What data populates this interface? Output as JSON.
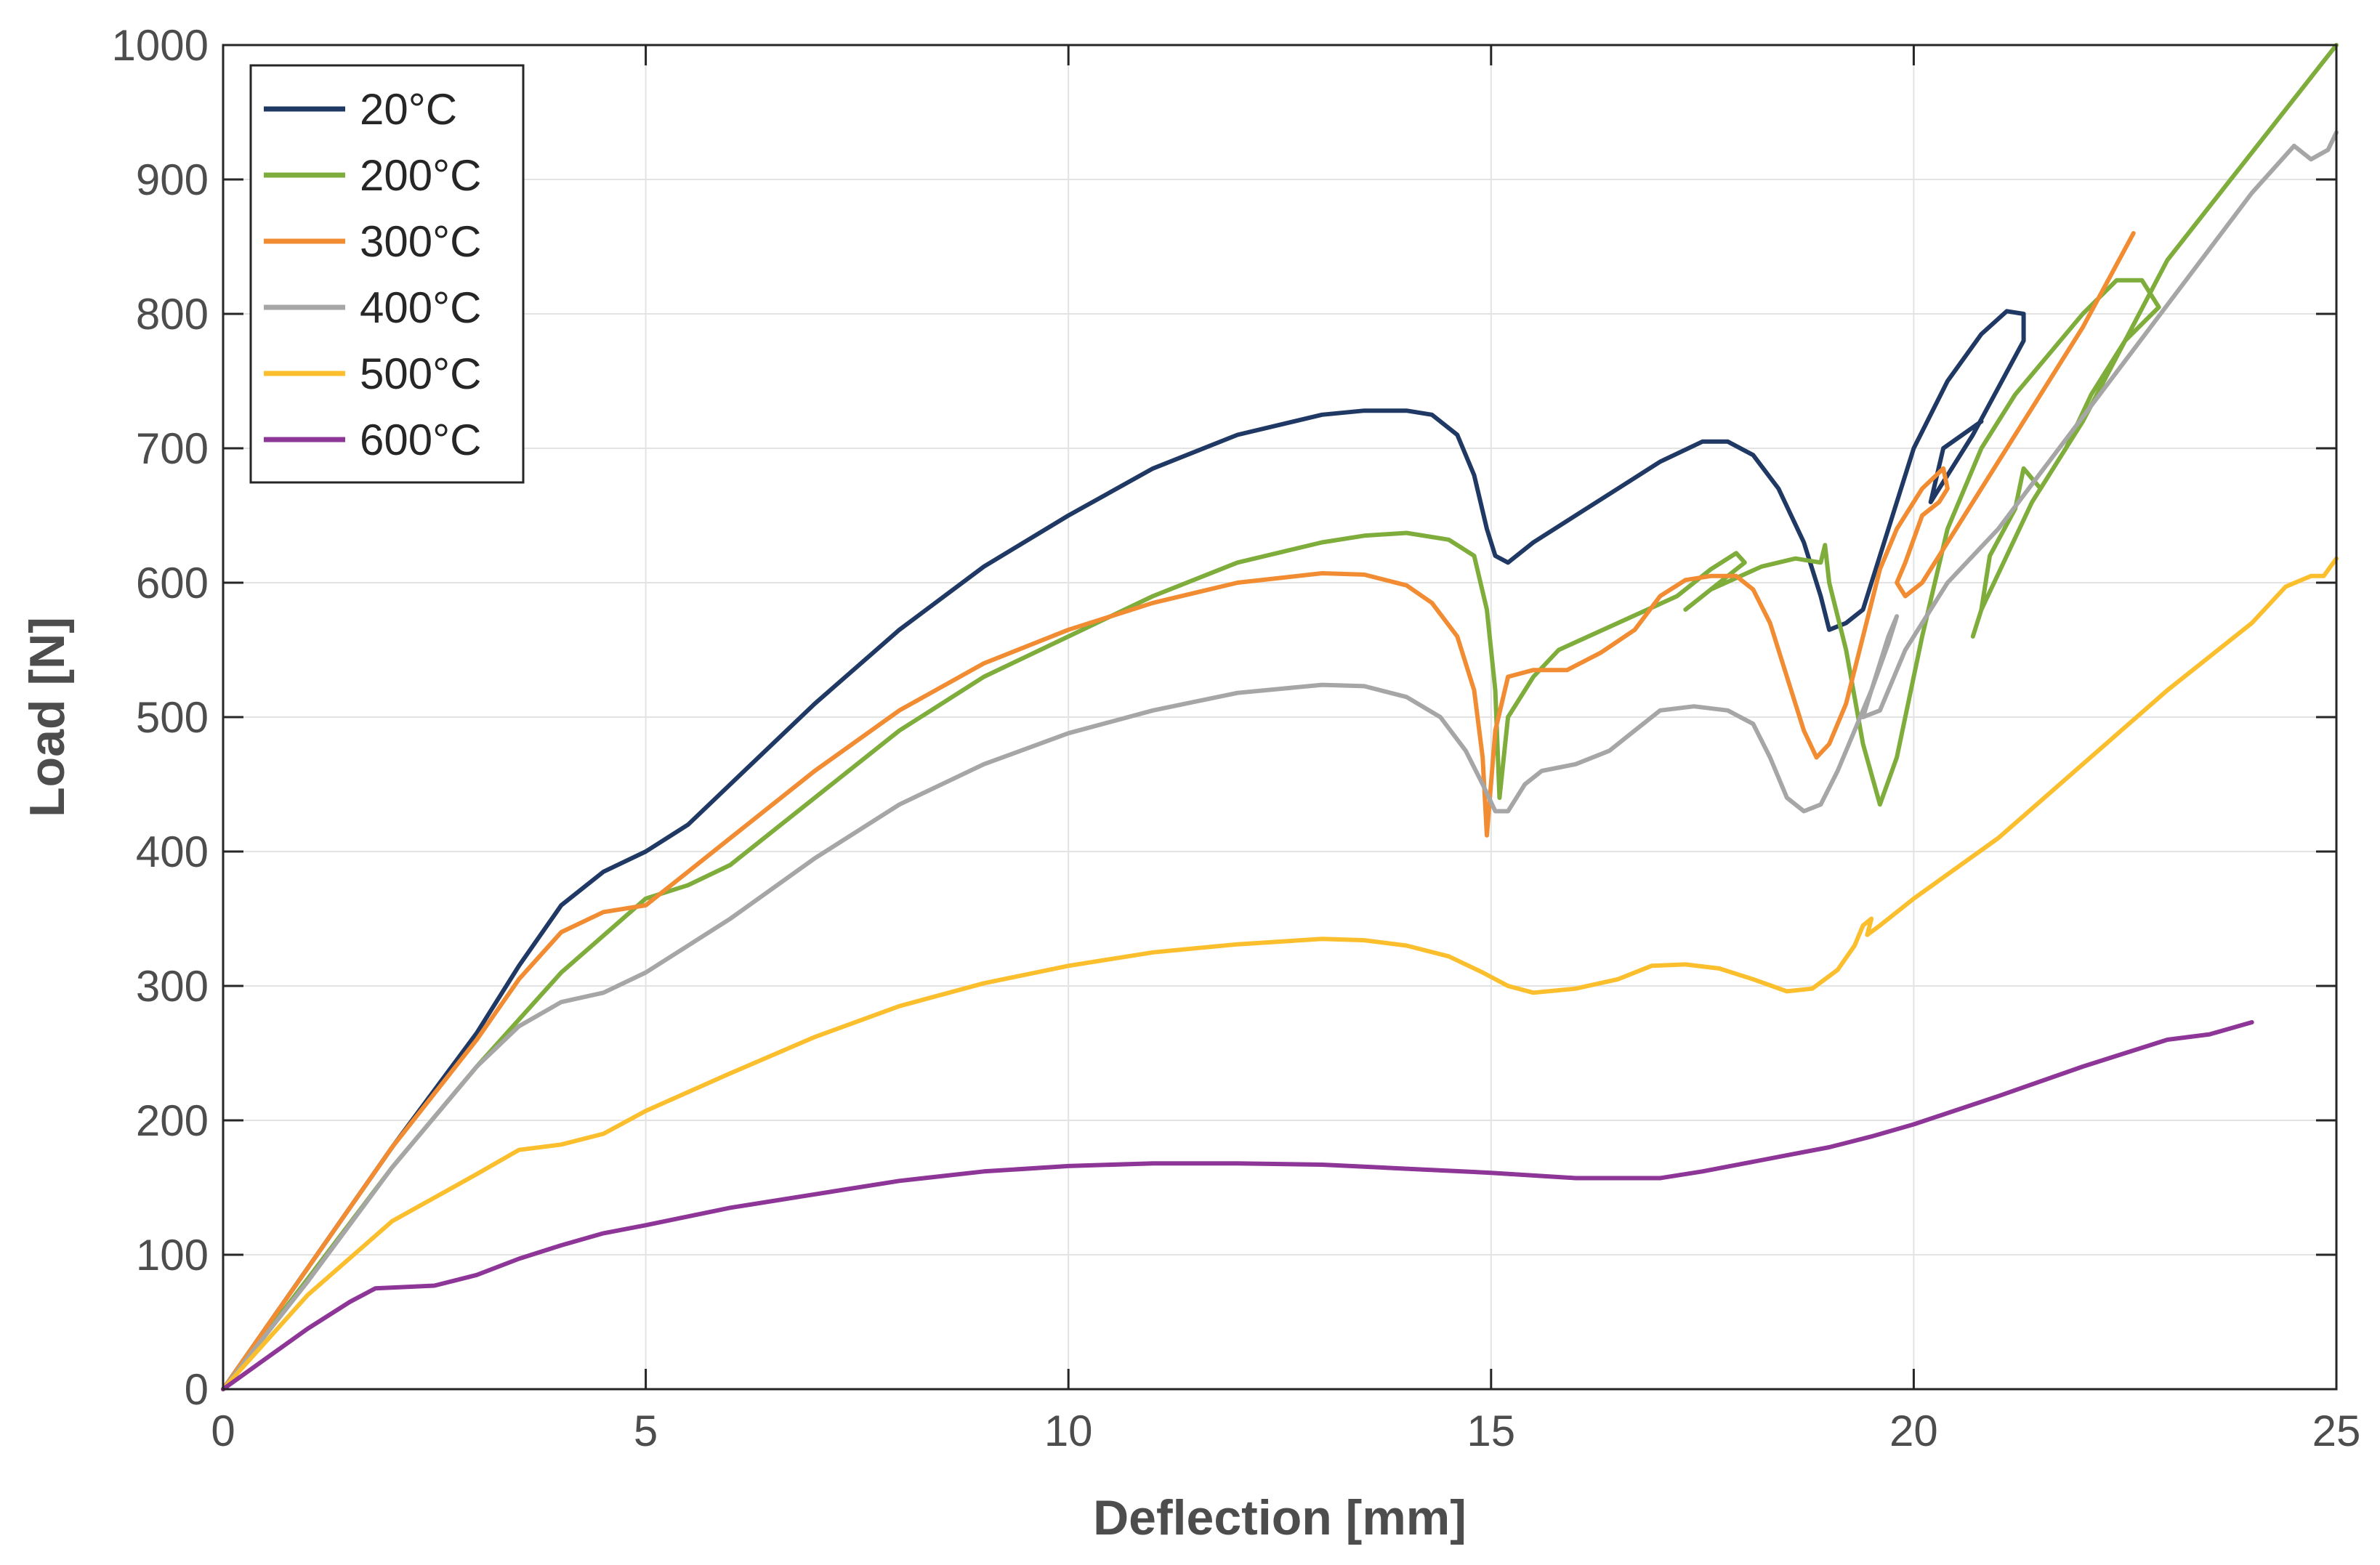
{
  "chart_data": {
    "type": "line",
    "title": "",
    "xlabel": "Deflection [mm]",
    "ylabel": "Load [N]",
    "xlim": [
      0,
      25
    ],
    "ylim": [
      0,
      1000
    ],
    "xticks": [
      0,
      5,
      10,
      15,
      20,
      25
    ],
    "yticks": [
      0,
      100,
      200,
      300,
      400,
      500,
      600,
      700,
      800,
      900,
      1000
    ],
    "grid": true,
    "legend_position": "top-left",
    "series": [
      {
        "name": "20°C",
        "color": "#1f3864",
        "points": [
          [
            0,
            0
          ],
          [
            1,
            90
          ],
          [
            2,
            180
          ],
          [
            3,
            265
          ],
          [
            3.5,
            315
          ],
          [
            4,
            360
          ],
          [
            4.5,
            385
          ],
          [
            5,
            400
          ],
          [
            5.5,
            420
          ],
          [
            6,
            450
          ],
          [
            7,
            510
          ],
          [
            8,
            565
          ],
          [
            9,
            612
          ],
          [
            10,
            650
          ],
          [
            11,
            685
          ],
          [
            12,
            710
          ],
          [
            13,
            725
          ],
          [
            13.5,
            728
          ],
          [
            14,
            728
          ],
          [
            14.3,
            725
          ],
          [
            14.6,
            710
          ],
          [
            14.8,
            680
          ],
          [
            14.95,
            640
          ],
          [
            15.05,
            620
          ],
          [
            15.2,
            615
          ],
          [
            15.5,
            630
          ],
          [
            16,
            650
          ],
          [
            16.5,
            670
          ],
          [
            17,
            690
          ],
          [
            17.5,
            705
          ],
          [
            17.8,
            705
          ],
          [
            18.1,
            695
          ],
          [
            18.4,
            670
          ],
          [
            18.7,
            630
          ],
          [
            18.9,
            590
          ],
          [
            19,
            565
          ],
          [
            19.2,
            570
          ],
          [
            19.4,
            580
          ],
          [
            19.7,
            640
          ],
          [
            20,
            700
          ],
          [
            20.4,
            750
          ],
          [
            20.8,
            785
          ],
          [
            21.1,
            802
          ],
          [
            21.3,
            800
          ],
          [
            21.3,
            780
          ],
          [
            20.7,
            710
          ],
          [
            20.2,
            660
          ],
          [
            20.35,
            700
          ],
          [
            20.8,
            720
          ]
        ]
      },
      {
        "name": "200°C",
        "color": "#7ead3b",
        "points": [
          [
            0,
            0
          ],
          [
            1,
            82
          ],
          [
            2,
            165
          ],
          [
            3,
            240
          ],
          [
            4,
            310
          ],
          [
            5,
            365
          ],
          [
            5.5,
            375
          ],
          [
            6,
            390
          ],
          [
            7,
            440
          ],
          [
            8,
            490
          ],
          [
            9,
            530
          ],
          [
            10,
            560
          ],
          [
            11,
            590
          ],
          [
            12,
            615
          ],
          [
            13,
            630
          ],
          [
            13.5,
            635
          ],
          [
            14,
            637
          ],
          [
            14.5,
            632
          ],
          [
            14.8,
            620
          ],
          [
            14.95,
            580
          ],
          [
            15.05,
            520
          ],
          [
            15.1,
            440
          ],
          [
            15.2,
            500
          ],
          [
            15.5,
            530
          ],
          [
            15.8,
            550
          ],
          [
            16.5,
            570
          ],
          [
            17.2,
            590
          ],
          [
            17.6,
            610
          ],
          [
            17.9,
            622
          ],
          [
            18,
            615
          ],
          [
            17.5,
            590
          ],
          [
            17.3,
            580
          ],
          [
            17.6,
            595
          ],
          [
            18.2,
            612
          ],
          [
            18.6,
            618
          ],
          [
            18.9,
            615
          ],
          [
            18.95,
            628
          ],
          [
            19,
            600
          ],
          [
            19.2,
            550
          ],
          [
            19.4,
            480
          ],
          [
            19.6,
            435
          ],
          [
            19.8,
            470
          ],
          [
            20.1,
            560
          ],
          [
            20.4,
            640
          ],
          [
            20.8,
            700
          ],
          [
            21.2,
            740
          ],
          [
            21.6,
            770
          ],
          [
            22,
            800
          ],
          [
            22.4,
            825
          ],
          [
            22.7,
            825
          ],
          [
            22.9,
            805
          ],
          [
            22.5,
            780
          ],
          [
            22.1,
            740
          ],
          [
            21.8,
            700
          ],
          [
            21.4,
            660
          ],
          [
            21.1,
            620
          ],
          [
            20.8,
            580
          ],
          [
            20.7,
            560
          ],
          [
            20.8,
            580
          ],
          [
            20.9,
            620
          ],
          [
            21.2,
            655
          ],
          [
            21.3,
            685
          ],
          [
            21.5,
            670
          ],
          [
            22,
            720
          ],
          [
            22.5,
            780
          ],
          [
            23,
            840
          ],
          [
            23.5,
            880
          ],
          [
            24,
            920
          ],
          [
            24.5,
            960
          ],
          [
            25,
            1000
          ]
        ]
      },
      {
        "name": "300°C",
        "color": "#f18c32",
        "points": [
          [
            0,
            0
          ],
          [
            1,
            90
          ],
          [
            2,
            180
          ],
          [
            3,
            260
          ],
          [
            3.5,
            305
          ],
          [
            4,
            340
          ],
          [
            4.5,
            355
          ],
          [
            5,
            360
          ],
          [
            5.5,
            385
          ],
          [
            6,
            410
          ],
          [
            7,
            460
          ],
          [
            8,
            505
          ],
          [
            9,
            540
          ],
          [
            10,
            565
          ],
          [
            11,
            585
          ],
          [
            12,
            600
          ],
          [
            13,
            607
          ],
          [
            13.5,
            606
          ],
          [
            14,
            598
          ],
          [
            14.3,
            585
          ],
          [
            14.6,
            560
          ],
          [
            14.8,
            520
          ],
          [
            14.9,
            470
          ],
          [
            14.95,
            412
          ],
          [
            15.05,
            490
          ],
          [
            15.2,
            530
          ],
          [
            15.5,
            535
          ],
          [
            15.9,
            535
          ],
          [
            16.3,
            548
          ],
          [
            16.7,
            565
          ],
          [
            17,
            590
          ],
          [
            17.3,
            602
          ],
          [
            17.6,
            605
          ],
          [
            17.9,
            605
          ],
          [
            18.1,
            595
          ],
          [
            18.3,
            570
          ],
          [
            18.5,
            530
          ],
          [
            18.7,
            490
          ],
          [
            18.85,
            470
          ],
          [
            19,
            480
          ],
          [
            19.2,
            510
          ],
          [
            19.4,
            560
          ],
          [
            19.6,
            610
          ],
          [
            19.8,
            640
          ],
          [
            20.1,
            670
          ],
          [
            20.35,
            685
          ],
          [
            20.4,
            670
          ],
          [
            20.3,
            660
          ],
          [
            20.1,
            650
          ],
          [
            19.9,
            615
          ],
          [
            19.8,
            600
          ],
          [
            19.9,
            590
          ],
          [
            20.1,
            600
          ],
          [
            20.5,
            640
          ],
          [
            21,
            690
          ],
          [
            21.5,
            740
          ],
          [
            22,
            790
          ],
          [
            22.6,
            860
          ]
        ]
      },
      {
        "name": "400°C",
        "color": "#a6a6a6",
        "points": [
          [
            0,
            0
          ],
          [
            1,
            80
          ],
          [
            2,
            165
          ],
          [
            3,
            240
          ],
          [
            3.5,
            270
          ],
          [
            4,
            288
          ],
          [
            4.5,
            295
          ],
          [
            5,
            310
          ],
          [
            5.5,
            330
          ],
          [
            6,
            350
          ],
          [
            7,
            395
          ],
          [
            8,
            435
          ],
          [
            9,
            465
          ],
          [
            10,
            488
          ],
          [
            11,
            505
          ],
          [
            12,
            518
          ],
          [
            13,
            524
          ],
          [
            13.5,
            523
          ],
          [
            14,
            515
          ],
          [
            14.4,
            500
          ],
          [
            14.7,
            475
          ],
          [
            14.9,
            450
          ],
          [
            15.05,
            430
          ],
          [
            15.2,
            430
          ],
          [
            15.4,
            450
          ],
          [
            15.6,
            460
          ],
          [
            16,
            465
          ],
          [
            16.4,
            475
          ],
          [
            16.7,
            490
          ],
          [
            17,
            505
          ],
          [
            17.4,
            508
          ],
          [
            17.8,
            505
          ],
          [
            18.1,
            495
          ],
          [
            18.3,
            470
          ],
          [
            18.5,
            440
          ],
          [
            18.7,
            430
          ],
          [
            18.9,
            435
          ],
          [
            19.1,
            460
          ],
          [
            19.3,
            490
          ],
          [
            19.5,
            520
          ],
          [
            19.7,
            560
          ],
          [
            19.8,
            575
          ],
          [
            19.7,
            555
          ],
          [
            19.5,
            520
          ],
          [
            19.4,
            500
          ],
          [
            19.6,
            505
          ],
          [
            19.9,
            550
          ],
          [
            20.4,
            600
          ],
          [
            21,
            640
          ],
          [
            21.6,
            690
          ],
          [
            22.2,
            740
          ],
          [
            22.8,
            790
          ],
          [
            23.4,
            840
          ],
          [
            24,
            890
          ],
          [
            24.5,
            925
          ],
          [
            24.7,
            915
          ],
          [
            24.9,
            922
          ],
          [
            25,
            935
          ]
        ]
      },
      {
        "name": "500°C",
        "color": "#fbbf2d",
        "points": [
          [
            0,
            0
          ],
          [
            1,
            70
          ],
          [
            2,
            125
          ],
          [
            3,
            160
          ],
          [
            3.5,
            178
          ],
          [
            4,
            182
          ],
          [
            4.5,
            190
          ],
          [
            5,
            207
          ],
          [
            6,
            235
          ],
          [
            7,
            262
          ],
          [
            8,
            285
          ],
          [
            9,
            302
          ],
          [
            10,
            315
          ],
          [
            11,
            325
          ],
          [
            12,
            331
          ],
          [
            13,
            335
          ],
          [
            13.5,
            334
          ],
          [
            14,
            330
          ],
          [
            14.5,
            322
          ],
          [
            14.9,
            310
          ],
          [
            15.2,
            300
          ],
          [
            15.5,
            295
          ],
          [
            16,
            298
          ],
          [
            16.5,
            305
          ],
          [
            16.9,
            315
          ],
          [
            17.3,
            316
          ],
          [
            17.7,
            313
          ],
          [
            18.1,
            305
          ],
          [
            18.5,
            296
          ],
          [
            18.8,
            298
          ],
          [
            19.1,
            312
          ],
          [
            19.3,
            330
          ],
          [
            19.4,
            345
          ],
          [
            19.5,
            350
          ],
          [
            19.45,
            338
          ],
          [
            19.6,
            345
          ],
          [
            20,
            365
          ],
          [
            21,
            410
          ],
          [
            22,
            465
          ],
          [
            23,
            520
          ],
          [
            24,
            570
          ],
          [
            24.4,
            597
          ],
          [
            24.7,
            605
          ],
          [
            24.85,
            605
          ],
          [
            25,
            618
          ]
        ]
      },
      {
        "name": "600°C",
        "color": "#8e3598",
        "points": [
          [
            0,
            0
          ],
          [
            1,
            45
          ],
          [
            1.5,
            65
          ],
          [
            1.8,
            75
          ],
          [
            2.5,
            77
          ],
          [
            3,
            85
          ],
          [
            3.5,
            97
          ],
          [
            4,
            107
          ],
          [
            4.5,
            116
          ],
          [
            5,
            122
          ],
          [
            6,
            135
          ],
          [
            7,
            145
          ],
          [
            8,
            155
          ],
          [
            9,
            162
          ],
          [
            10,
            166
          ],
          [
            11,
            168
          ],
          [
            12,
            168
          ],
          [
            13,
            167
          ],
          [
            14,
            164
          ],
          [
            15,
            161
          ],
          [
            16,
            157
          ],
          [
            17,
            157
          ],
          [
            17.5,
            162
          ],
          [
            18,
            168
          ],
          [
            18.5,
            174
          ],
          [
            19,
            180
          ],
          [
            19.5,
            188
          ],
          [
            20,
            197
          ],
          [
            21,
            218
          ],
          [
            22,
            240
          ],
          [
            22.5,
            250
          ],
          [
            23,
            260
          ],
          [
            23.5,
            264
          ],
          [
            24,
            273
          ]
        ]
      }
    ]
  }
}
